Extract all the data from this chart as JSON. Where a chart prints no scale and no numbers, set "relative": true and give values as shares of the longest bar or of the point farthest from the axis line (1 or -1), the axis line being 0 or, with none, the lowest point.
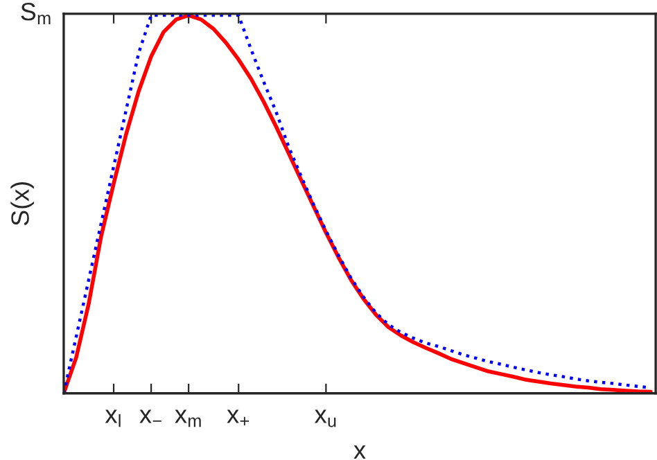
{
  "chart_data": {
    "type": "line",
    "relative": true,
    "xlabel": "x",
    "ylabel": "S(x)",
    "categories": [
      null,
      null,
      null,
      null,
      "x$_{l}$",
      null,
      null,
      "x$_{−}$",
      null,
      null,
      "x$_{m}$",
      null,
      null,
      null,
      "x$_{+}$",
      null,
      null,
      null,
      null,
      null,
      null,
      "x$_{u}$",
      null,
      null,
      null,
      null,
      null,
      null,
      null,
      null,
      null,
      null,
      null,
      null,
      null,
      null,
      null,
      null,
      null,
      null,
      null,
      null,
      null,
      null,
      null,
      null,
      null,
      null
    ],
    "series": [
      {
        "color": "#ff0000",
        "line_style": "solid",
        "values": [
          0,
          0.095,
          0.237,
          0.416,
          0.555,
          0.686,
          0.799,
          0.891,
          0.956,
          0.989,
          1.0,
          0.989,
          0.964,
          0.927,
          0.883,
          0.832,
          0.772,
          0.706,
          0.636,
          0.565,
          0.495,
          0.425,
          0.36,
          0.3,
          0.25,
          0.208,
          0.175,
          0.153,
          0.135,
          0.12,
          0.106,
          0.091,
          0.08,
          0.069,
          0.058,
          0.051,
          0.044,
          0.036,
          0.031,
          0.026,
          0.022,
          0.018,
          0.015,
          0.011,
          0.009,
          0.007,
          0.005,
          0.004
        ]
      },
      {
        "color": "#0000ff",
        "line_style": "dotted",
        "values": [
          0,
          0.15,
          0.3,
          0.45,
          0.6,
          0.75,
          0.9,
          1,
          1,
          1,
          1,
          1,
          1,
          1,
          1,
          0.91,
          0.825,
          0.745,
          0.653,
          0.575,
          0.5,
          0.43,
          0.365,
          0.305,
          0.255,
          0.213,
          0.182,
          0.161,
          0.146,
          0.133,
          0.124,
          0.113,
          0.102,
          0.093,
          0.084,
          0.077,
          0.069,
          0.062,
          0.055,
          0.049,
          0.044,
          0.038,
          0.033,
          0.029,
          0.026,
          0.022,
          0.018,
          0.015
        ]
      }
    ],
    "annotations": [
      "S$_{m}$"
    ],
    "grid": false,
    "legend": false
  }
}
